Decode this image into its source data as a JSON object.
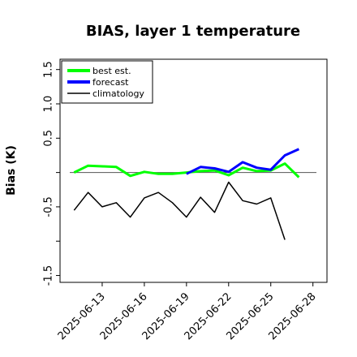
{
  "chart_data": {
    "type": "line",
    "title": "BIAS, layer 1 temperature",
    "xlabel": "",
    "ylabel": "Bias (K)",
    "ylim": [
      -1.6,
      1.65
    ],
    "yticks": [
      -1.5,
      -1.0,
      -0.5,
      0.0,
      0.5,
      1.0,
      1.5
    ],
    "ytick_labels": [
      "-1.5",
      "",
      "-0.5",
      "",
      "0.5",
      "1.0",
      "1.5"
    ],
    "xlim": [
      "2025-06-10",
      "2025-06-29"
    ],
    "xticks": [
      "2025-06-13",
      "2025-06-16",
      "2025-06-19",
      "2025-06-22",
      "2025-06-25",
      "2025-06-28"
    ],
    "highlight_xtick": "2025-06-19",
    "highlight_color": "#228B22",
    "zero_line": 0,
    "legend_location": "upper left",
    "series": [
      {
        "name": "best est.",
        "color": "#00ff00",
        "linewidth": 3,
        "x": [
          "2025-06-11",
          "2025-06-12",
          "2025-06-13",
          "2025-06-14",
          "2025-06-15",
          "2025-06-16",
          "2025-06-17",
          "2025-06-18",
          "2025-06-19",
          "2025-06-20",
          "2025-06-21",
          "2025-06-22",
          "2025-06-23",
          "2025-06-24",
          "2025-06-25",
          "2025-06-26",
          "2025-06-27"
        ],
        "y": [
          0.0,
          0.1,
          0.09,
          0.08,
          -0.05,
          0.01,
          -0.02,
          -0.02,
          0.0,
          0.02,
          0.03,
          -0.04,
          0.07,
          0.02,
          0.03,
          0.13,
          -0.07
        ]
      },
      {
        "name": "forecast",
        "color": "#0000ff",
        "linewidth": 3,
        "x": [
          "2025-06-19",
          "2025-06-20",
          "2025-06-21",
          "2025-06-22",
          "2025-06-23",
          "2025-06-24",
          "2025-06-25",
          "2025-06-26",
          "2025-06-27"
        ],
        "y": [
          -0.02,
          0.08,
          0.06,
          0.01,
          0.15,
          0.07,
          0.04,
          0.25,
          0.34
        ]
      },
      {
        "name": "climatology",
        "color": "#000000",
        "linewidth": 1.5,
        "x": [
          "2025-06-11",
          "2025-06-12",
          "2025-06-13",
          "2025-06-14",
          "2025-06-15",
          "2025-06-16",
          "2025-06-17",
          "2025-06-18",
          "2025-06-19",
          "2025-06-20",
          "2025-06-21",
          "2025-06-22",
          "2025-06-23",
          "2025-06-24",
          "2025-06-25",
          "2025-06-26",
          "2025-06-27"
        ],
        "y": [
          -0.55,
          -0.29,
          -0.5,
          -0.44,
          -0.65,
          -0.37,
          -0.29,
          -0.44,
          -0.65,
          -0.36,
          -0.58,
          -0.14,
          -0.41,
          -0.46,
          -0.37,
          -0.98,
          null
        ]
      }
    ]
  }
}
